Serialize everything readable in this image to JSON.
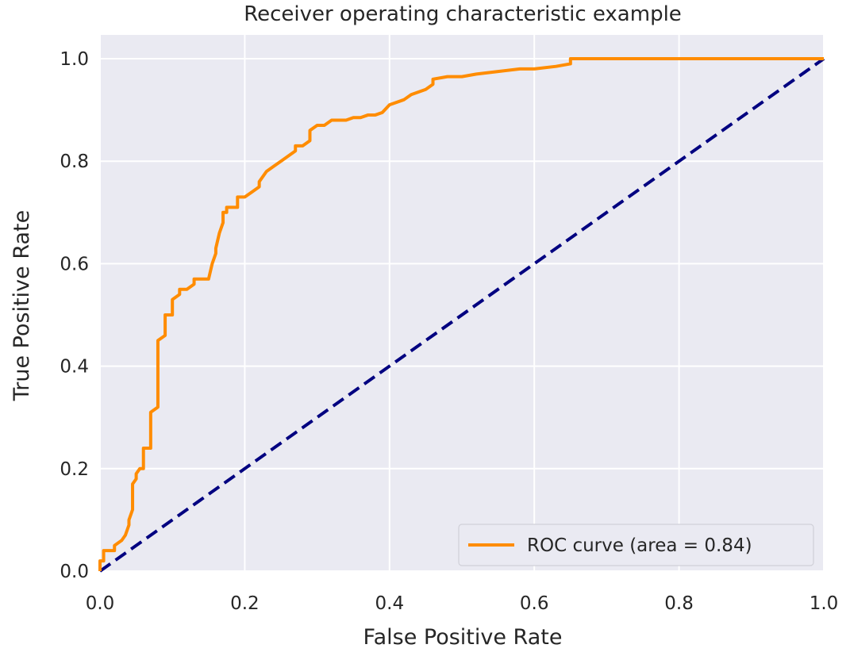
{
  "chart_data": {
    "type": "line",
    "title": "Receiver operating characteristic example",
    "xlabel": "False Positive Rate",
    "ylabel": "True Positive Rate",
    "xlim": [
      0.0,
      1.0
    ],
    "ylim": [
      0.0,
      1.05
    ],
    "xticks": [
      0.0,
      0.2,
      0.4,
      0.6,
      0.8,
      1.0
    ],
    "xtick_labels": [
      "0.0",
      "0.2",
      "0.4",
      "0.6",
      "0.8",
      "1.0"
    ],
    "yticks": [
      0.0,
      0.2,
      0.4,
      0.6,
      0.8,
      1.0
    ],
    "ytick_labels": [
      "0.0",
      "0.2",
      "0.4",
      "0.6",
      "0.8",
      "1.0"
    ],
    "grid": true,
    "legend_position": "lower-right",
    "background_color": "#eaeaf2",
    "grid_color": "#ffffff",
    "series": [
      {
        "name": "ROC curve (area = 0.84)",
        "style": "solid",
        "color": "#ff8c00",
        "x": [
          0.0,
          0.0,
          0.005,
          0.005,
          0.02,
          0.02,
          0.03,
          0.035,
          0.04,
          0.04,
          0.045,
          0.045,
          0.05,
          0.05,
          0.055,
          0.06,
          0.06,
          0.07,
          0.07,
          0.07,
          0.08,
          0.08,
          0.08,
          0.09,
          0.09,
          0.1,
          0.1,
          0.11,
          0.11,
          0.12,
          0.13,
          0.13,
          0.15,
          0.155,
          0.16,
          0.16,
          0.165,
          0.17,
          0.17,
          0.175,
          0.175,
          0.19,
          0.19,
          0.2,
          0.21,
          0.22,
          0.22,
          0.23,
          0.23,
          0.24,
          0.25,
          0.26,
          0.27,
          0.27,
          0.28,
          0.29,
          0.29,
          0.3,
          0.31,
          0.32,
          0.33,
          0.34,
          0.35,
          0.36,
          0.37,
          0.38,
          0.39,
          0.4,
          0.42,
          0.43,
          0.45,
          0.46,
          0.46,
          0.48,
          0.5,
          0.52,
          0.55,
          0.58,
          0.6,
          0.63,
          0.65,
          0.65,
          0.7,
          0.78,
          0.8,
          0.9,
          1.0
        ],
        "y": [
          0.0,
          0.02,
          0.02,
          0.04,
          0.04,
          0.05,
          0.06,
          0.07,
          0.09,
          0.1,
          0.12,
          0.17,
          0.18,
          0.19,
          0.2,
          0.2,
          0.24,
          0.24,
          0.24,
          0.31,
          0.32,
          0.36,
          0.45,
          0.46,
          0.5,
          0.5,
          0.53,
          0.54,
          0.55,
          0.55,
          0.56,
          0.57,
          0.57,
          0.6,
          0.62,
          0.63,
          0.66,
          0.68,
          0.7,
          0.7,
          0.71,
          0.71,
          0.73,
          0.73,
          0.74,
          0.75,
          0.76,
          0.78,
          0.78,
          0.79,
          0.8,
          0.81,
          0.82,
          0.83,
          0.83,
          0.84,
          0.86,
          0.87,
          0.87,
          0.88,
          0.88,
          0.88,
          0.885,
          0.885,
          0.89,
          0.89,
          0.895,
          0.91,
          0.92,
          0.93,
          0.94,
          0.95,
          0.96,
          0.965,
          0.965,
          0.97,
          0.975,
          0.98,
          0.98,
          0.985,
          0.99,
          1.0,
          1.0,
          1.0,
          1.0,
          1.0,
          1.0
        ]
      },
      {
        "style": "dashed",
        "color": "#000080",
        "x": [
          0.0,
          1.0
        ],
        "y": [
          0.0,
          1.0
        ]
      }
    ]
  }
}
